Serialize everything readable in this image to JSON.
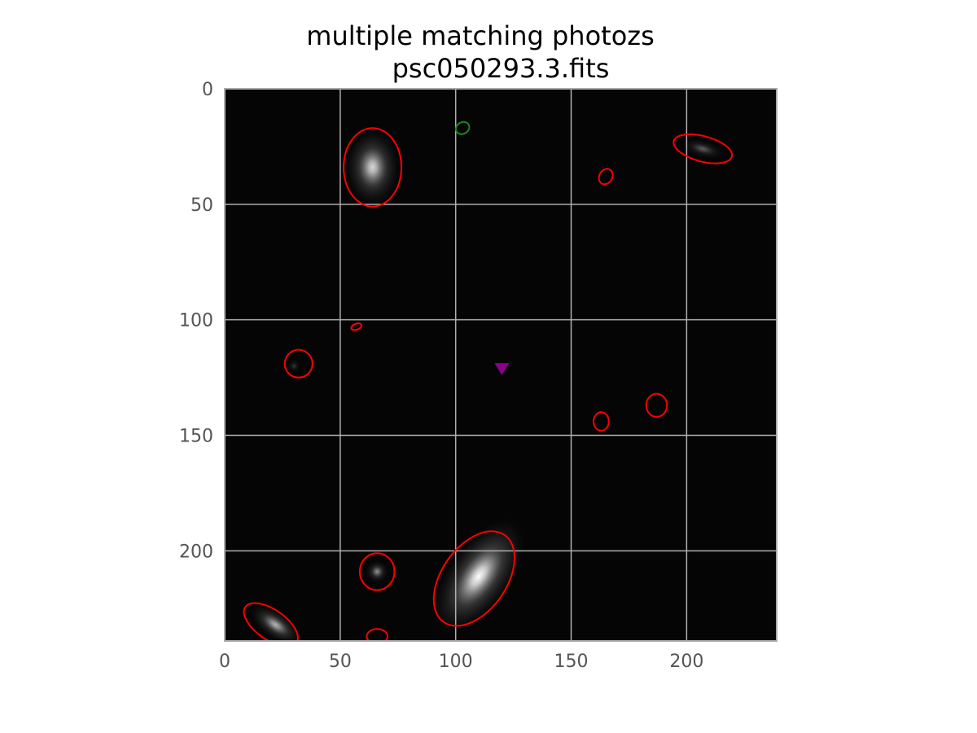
{
  "title_line1": "multiple matching photozs",
  "title_line2": "psc050293.3.fits",
  "chart_data": {
    "type": "scatter",
    "description_note": "",
    "x_ticks": [
      0,
      50,
      100,
      150,
      200
    ],
    "y_ticks": [
      0,
      50,
      100,
      150,
      200
    ],
    "xlim": [
      0,
      239
    ],
    "ylim": [
      239,
      0
    ],
    "y_inverted": true,
    "grid": true,
    "background_color": "#050505",
    "grid_color": "#b0b0b0",
    "red_ellipse_color": "#ff0000",
    "green_ellipse_color": "#1a8a1a",
    "marker_color": "#8b008b",
    "sources": [
      {
        "x": 64,
        "y": 34,
        "rx": 12,
        "ry": 17,
        "angle": 0,
        "brightness": 0.85
      },
      {
        "x": 110,
        "y": 211,
        "rx": 14,
        "ry": 29,
        "angle": 35,
        "brightness": 1.0
      },
      {
        "x": 22,
        "y": 232,
        "rx": 6,
        "ry": 13,
        "angle": -55,
        "brightness": 0.7
      },
      {
        "x": 66,
        "y": 209,
        "rx": 5,
        "ry": 5,
        "angle": 0,
        "brightness": 0.55
      },
      {
        "x": 207,
        "y": 26,
        "rx": 4,
        "ry": 10,
        "angle": -75,
        "brightness": 0.35
      },
      {
        "x": 30,
        "y": 120,
        "rx": 3,
        "ry": 3,
        "angle": 0,
        "brightness": 0.2
      }
    ],
    "red_ellipses": [
      {
        "x": 64,
        "y": 34,
        "rx": 12.5,
        "ry": 17,
        "angle": 0
      },
      {
        "x": 207,
        "y": 26,
        "rx": 13,
        "ry": 5.5,
        "angle": 15
      },
      {
        "x": 165,
        "y": 38,
        "rx": 2.8,
        "ry": 3.5,
        "angle": 30
      },
      {
        "x": 57,
        "y": 103,
        "rx": 2.3,
        "ry": 1.3,
        "angle": -20
      },
      {
        "x": 32,
        "y": 119,
        "rx": 6,
        "ry": 6,
        "angle": 0
      },
      {
        "x": 187,
        "y": 137,
        "rx": 4.5,
        "ry": 5,
        "angle": 0
      },
      {
        "x": 163,
        "y": 144,
        "rx": 3.3,
        "ry": 4,
        "angle": 0
      },
      {
        "x": 66,
        "y": 209,
        "rx": 7.5,
        "ry": 8,
        "angle": 0
      },
      {
        "x": 108,
        "y": 212,
        "rx": 14,
        "ry": 23,
        "angle": 35
      },
      {
        "x": 20,
        "y": 232,
        "rx": 13.5,
        "ry": 6.5,
        "angle": 35
      },
      {
        "x": 66,
        "y": 237,
        "rx": 4.5,
        "ry": 3.2,
        "angle": 0
      }
    ],
    "green_ellipses": [
      {
        "x": 103,
        "y": 17,
        "rx": 3,
        "ry": 2.5,
        "angle": -30
      }
    ],
    "markers": [
      {
        "x": 120,
        "y": 121,
        "symbol": "triangle-down"
      }
    ]
  }
}
